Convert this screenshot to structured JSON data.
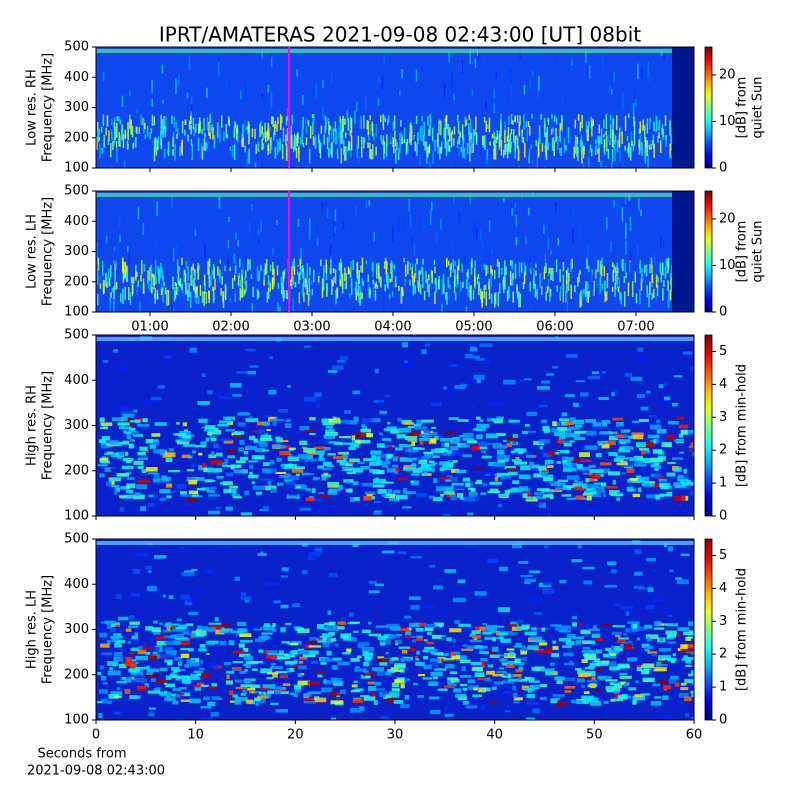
{
  "chart_data": [
    {
      "type": "heatmap",
      "title": "IPRT/AMATERAS 2021-09-08 02:43:00 [UT]   08bit",
      "ylabel": [
        "Low res. RH",
        "Frequency [MHz]"
      ],
      "ylim": [
        100,
        500
      ],
      "yticks": [
        100,
        200,
        300,
        400,
        500
      ],
      "xlim": [
        0.3333,
        7.7167
      ],
      "colormap": "jet",
      "clim": [
        0,
        26
      ],
      "cticks": [
        0,
        10,
        20
      ],
      "clabel": [
        "[dB] from",
        "quiet Sun"
      ],
      "markers": [
        {
          "x": 2.7167,
          "color": "#ff00ff"
        }
      ]
    },
    {
      "type": "heatmap",
      "ylabel": [
        "Low res. LH",
        "Frequency [MHz]"
      ],
      "ylim": [
        100,
        500
      ],
      "yticks": [
        100,
        200,
        300,
        400,
        500
      ],
      "xlim": [
        0.3333,
        7.7167
      ],
      "xticks": [
        {
          "value": 1,
          "label": "01:00"
        },
        {
          "value": 2,
          "label": "02:00"
        },
        {
          "value": 3,
          "label": "03:00"
        },
        {
          "value": 4,
          "label": "04:00"
        },
        {
          "value": 5,
          "label": "05:00"
        },
        {
          "value": 6,
          "label": "06:00"
        },
        {
          "value": 7,
          "label": "07:00"
        }
      ],
      "colormap": "jet",
      "clim": [
        0,
        26
      ],
      "cticks": [
        0,
        10,
        20
      ],
      "clabel": [
        "[dB] from",
        "quiet Sun"
      ],
      "markers": [
        {
          "x": 2.7167,
          "color": "#ff00ff"
        }
      ]
    },
    {
      "type": "heatmap",
      "ylabel": [
        "High res. RH",
        "Frequency [MHz]"
      ],
      "ylim": [
        100,
        500
      ],
      "yticks": [
        100,
        200,
        300,
        400,
        500
      ],
      "xlim": [
        0,
        60
      ],
      "colormap": "jet",
      "clim": [
        0,
        5.5
      ],
      "cticks": [
        0,
        1,
        2,
        3,
        4,
        5
      ],
      "clabel": [
        "[dB] from min-hold"
      ]
    },
    {
      "type": "heatmap",
      "ylabel": [
        "High res. LH",
        "Frequency [MHz]"
      ],
      "ylim": [
        100,
        500
      ],
      "yticks": [
        100,
        200,
        300,
        400,
        500
      ],
      "xlim": [
        0,
        60
      ],
      "xticks": [
        0,
        10,
        20,
        30,
        40,
        50,
        60
      ],
      "xlabel": [
        "Seconds from",
        "2021-09-08 02:43:00"
      ],
      "colormap": "jet",
      "clim": [
        0,
        5.5
      ],
      "cticks": [
        0,
        1,
        2,
        3,
        4,
        5
      ],
      "clabel": [
        "[dB] from min-hold"
      ]
    }
  ]
}
